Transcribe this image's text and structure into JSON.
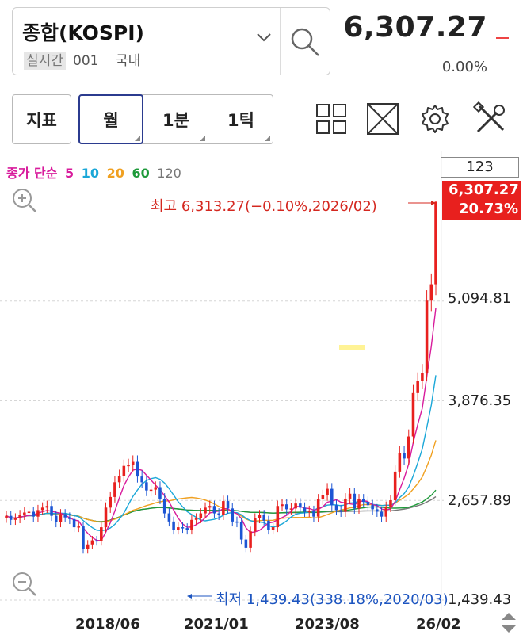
{
  "header": {
    "index_name": "종합(KOSPI)",
    "realtime_label": "실시간",
    "code": "001",
    "market": "국내",
    "price": "6,307.27",
    "change_pct": "0.00%"
  },
  "toolbar": {
    "indicator_label": "지표",
    "period_month": "월",
    "period_1min": "1분",
    "period_1tick": "1틱"
  },
  "chart_data": {
    "type": "candlestick",
    "title": "",
    "ma_legend": {
      "label": "종가 단순",
      "periods": [
        "5",
        "10",
        "20",
        "60",
        "120"
      ],
      "colors": [
        "#d81b9c",
        "#1aa7d8",
        "#f0a020",
        "#1e9a3a",
        "#777777"
      ]
    },
    "x_ticks": [
      "2018/06",
      "2021/01",
      "2023/08",
      "26/02"
    ],
    "y_ticks": [
      "5,094.81",
      "3,876.35",
      "2,657.89",
      "1,439.43"
    ],
    "y_tick_values": [
      5094.81,
      3876.35,
      2657.89,
      1439.43
    ],
    "ylim": [
      1439.43,
      6313.27
    ],
    "grid": true,
    "current_price_tag": {
      "price": "6,307.27",
      "pct": "20.73%"
    },
    "box_label": "123",
    "max_annotation": "최고 6,313.27(−0.10%,2026/02)",
    "min_annotation": "최저 1,439.43(338.18%,2020/03)",
    "closes": [
      2470,
      2420,
      2440,
      2480,
      2510,
      2520,
      2460,
      2540,
      2570,
      2590,
      2470,
      2390,
      2490,
      2450,
      2430,
      2330,
      2340,
      2060,
      2120,
      2170,
      2160,
      2330,
      2570,
      2700,
      2880,
      2960,
      3080,
      3090,
      3130,
      2950,
      2880,
      2780,
      2790,
      2820,
      2680,
      2500,
      2400,
      2300,
      2330,
      2320,
      2300,
      2420,
      2440,
      2500,
      2570,
      2590,
      2500,
      2480,
      2650,
      2560,
      2400,
      2390,
      2180,
      2080,
      2280,
      2440,
      2480,
      2410,
      2300,
      2330,
      2590,
      2610,
      2550,
      2560,
      2620,
      2570,
      2520,
      2530,
      2460,
      2670,
      2720,
      2800,
      2600,
      2540,
      2520,
      2680,
      2740,
      2560,
      2670,
      2640,
      2600,
      2550,
      2520,
      2460,
      2580,
      2660,
      3010,
      3240,
      3170,
      3440,
      3970,
      4120,
      4220,
      5100,
      5300,
      6307.27
    ]
  }
}
